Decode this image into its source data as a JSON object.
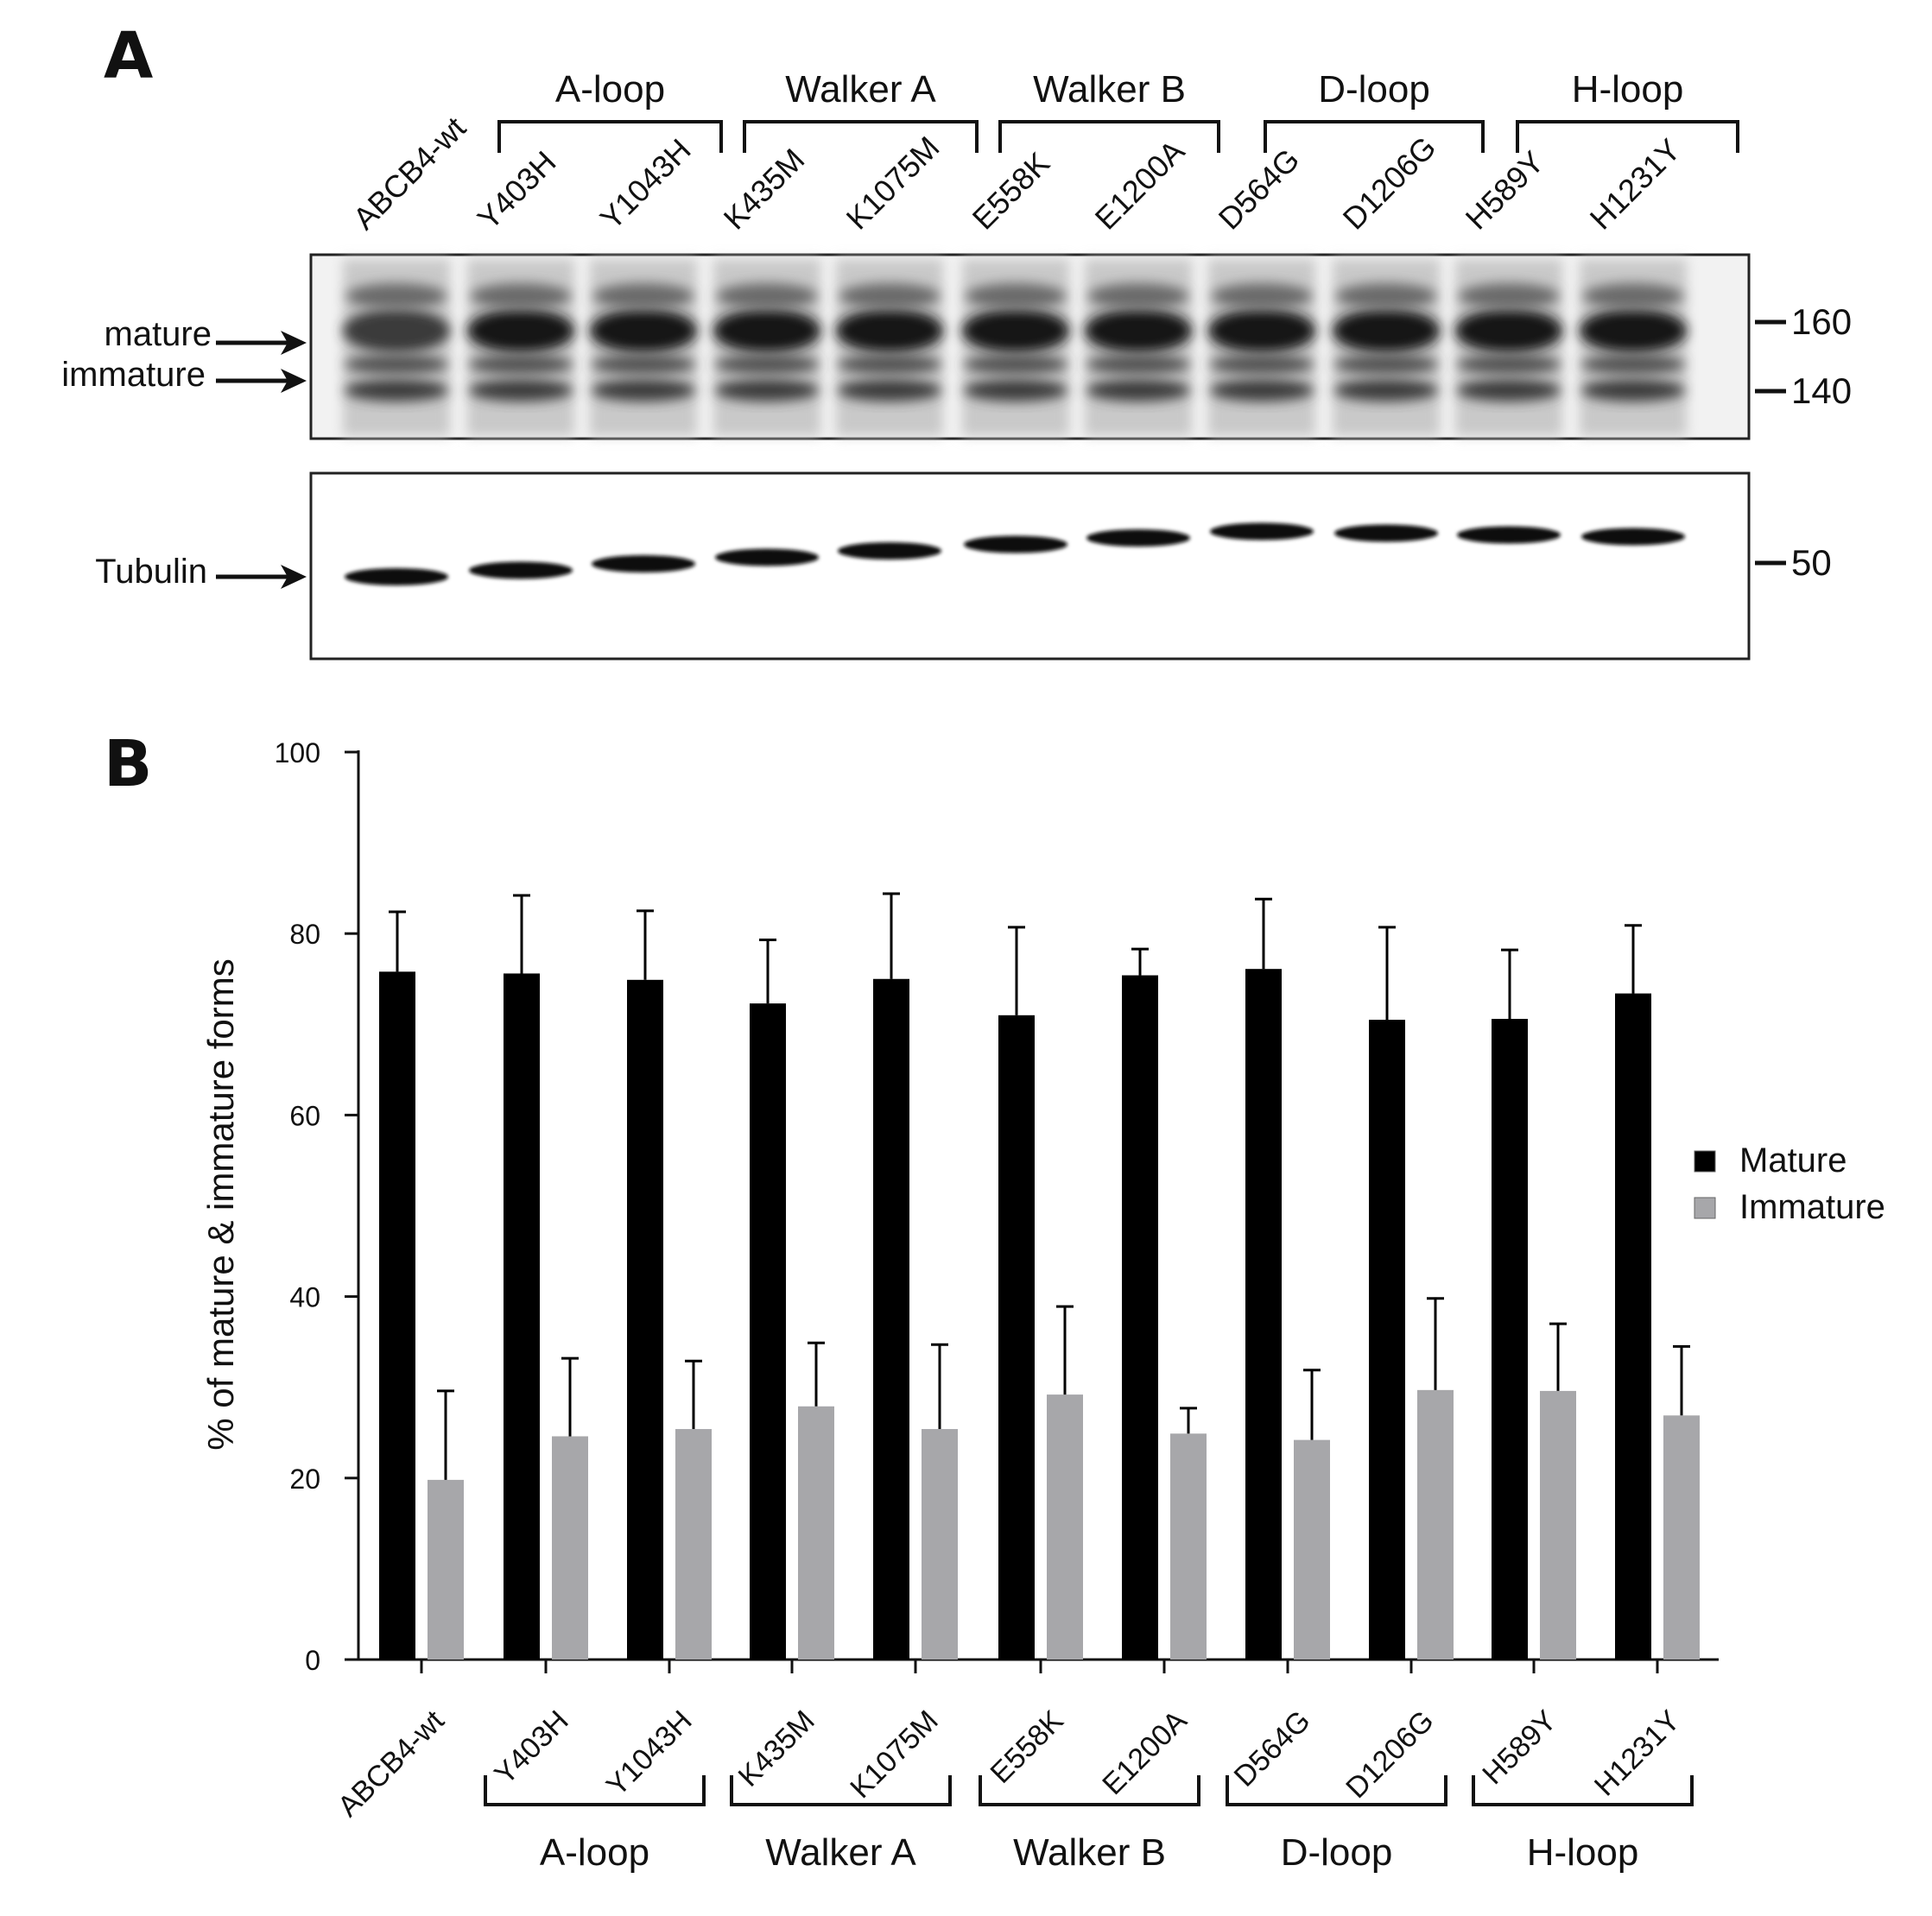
{
  "panel_a": {
    "letter": "A",
    "groups": [
      {
        "name": "A-loop",
        "lanes": [
          "Y403H",
          "Y1043H"
        ]
      },
      {
        "name": "Walker A",
        "lanes": [
          "K435M",
          "K1075M"
        ]
      },
      {
        "name": "Walker B",
        "lanes": [
          "E558K",
          "E1200A"
        ]
      },
      {
        "name": "D-loop",
        "lanes": [
          "D564G",
          "D1206G"
        ]
      },
      {
        "name": "H-loop",
        "lanes": [
          "H589Y",
          "H1231Y"
        ]
      }
    ],
    "lanes": [
      "ABCB4-wt",
      "Y403H",
      "Y1043H",
      "K435M",
      "K1075M",
      "E558K",
      "E1200A",
      "D564G",
      "D1206G",
      "H589Y",
      "H1231Y"
    ],
    "band_labels": {
      "mature": "mature",
      "immature": "immature",
      "tubulin": "Tubulin"
    },
    "markers_top": [
      "160",
      "140"
    ],
    "marker_bottom": "50"
  },
  "panel_b": {
    "letter": "B"
  },
  "chart_data": {
    "type": "bar",
    "categories": [
      "ABCB4-wt",
      "Y403H",
      "Y1043H",
      "K435M",
      "K1075M",
      "E558K",
      "E1200A",
      "D564G",
      "D1206G",
      "H589Y",
      "H1231Y"
    ],
    "series": [
      {
        "name": "Mature",
        "color": "#000000",
        "values": [
          75.8,
          75.6,
          74.9,
          72.3,
          75.0,
          71.0,
          75.4,
          76.1,
          70.5,
          70.6,
          73.4
        ],
        "errors": [
          6.6,
          8.6,
          7.6,
          7.0,
          9.4,
          9.7,
          2.9,
          7.7,
          10.2,
          7.6,
          7.5
        ]
      },
      {
        "name": "Immature",
        "color": "#a7a7aa",
        "values": [
          19.8,
          24.6,
          25.4,
          27.9,
          25.4,
          29.2,
          24.9,
          24.2,
          29.7,
          29.6,
          26.9
        ],
        "errors": [
          9.8,
          8.6,
          7.5,
          7.0,
          9.3,
          9.7,
          2.8,
          7.7,
          10.1,
          7.4,
          7.6
        ]
      }
    ],
    "groups": [
      {
        "name": "A-loop",
        "from": 1,
        "to": 2
      },
      {
        "name": "Walker A",
        "from": 3,
        "to": 4
      },
      {
        "name": "Walker B",
        "from": 5,
        "to": 6
      },
      {
        "name": "D-loop",
        "from": 7,
        "to": 8
      },
      {
        "name": "H-loop",
        "from": 9,
        "to": 10
      }
    ],
    "ylabel": "% of mature & immature forms",
    "xlabel": "",
    "ylim": [
      0,
      100
    ],
    "yticks": [
      0,
      20,
      40,
      60,
      80,
      100
    ],
    "legend": "right",
    "grid": false
  }
}
